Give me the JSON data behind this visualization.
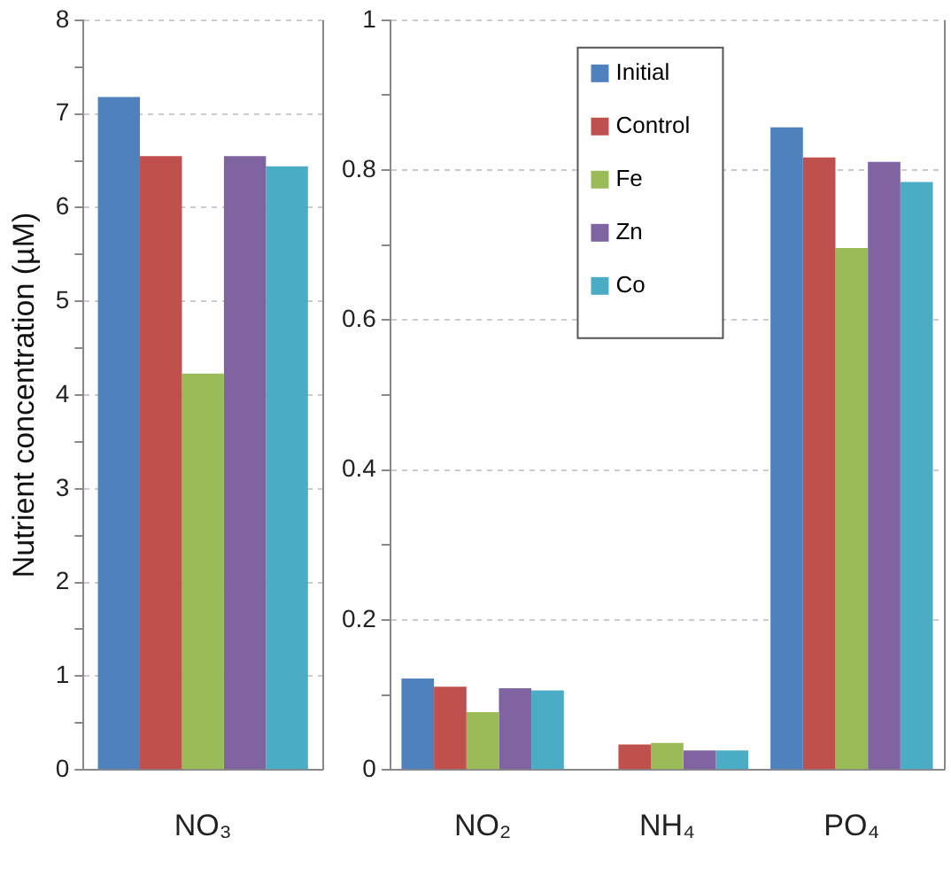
{
  "chart_data": [
    {
      "type": "bar",
      "ylabel": "Nutrient concentration (µM)",
      "categories": [
        "NO₃"
      ],
      "series": [
        {
          "color": "#4f81bd",
          "values": [
            7.18
          ]
        },
        {
          "color": "#c0504d",
          "values": [
            6.55
          ]
        },
        {
          "color": "#9bbb59",
          "values": [
            4.23
          ]
        },
        {
          "color": "#8064a2",
          "values": [
            6.55
          ]
        },
        {
          "color": "#4bacc6",
          "values": [
            6.44
          ]
        }
      ],
      "ylim": [
        0,
        8
      ],
      "yticks": [
        0,
        {
          "value": 0.5,
          "label": null
        },
        1,
        {
          "value": 1.5,
          "label": null
        },
        2,
        {
          "value": 2.5,
          "label": null
        },
        3,
        {
          "value": 3.5,
          "label": null
        },
        4,
        {
          "value": 4.5,
          "label": null
        },
        5,
        {
          "value": 5.5,
          "label": null
        },
        6,
        {
          "value": 6.5,
          "label": null
        },
        7,
        {
          "value": 7.5,
          "label": null
        },
        8
      ],
      "grid": "y"
    },
    {
      "type": "bar",
      "categories": [
        "NO₂",
        "NH₄",
        "PO₄"
      ],
      "series": [
        {
          "name": "Initial",
          "color": "#4f81bd",
          "values": [
            0.122,
            null,
            0.857
          ]
        },
        {
          "name": "Control",
          "color": "#c0504d",
          "values": [
            0.111,
            0.034,
            0.817
          ]
        },
        {
          "name": "Fe",
          "color": "#9bbb59",
          "values": [
            0.077,
            0.036,
            0.696
          ]
        },
        {
          "name": "Zn",
          "color": "#8064a2",
          "values": [
            0.109,
            0.026,
            0.811
          ]
        },
        {
          "name": "Co",
          "color": "#4bacc6",
          "values": [
            0.106,
            0.026,
            0.784
          ]
        }
      ],
      "ylim": [
        0,
        1
      ],
      "yticks": [
        0,
        {
          "value": 0.1,
          "label": null
        },
        0.2,
        {
          "value": 0.3,
          "label": null
        },
        0.4,
        {
          "value": 0.5,
          "label": null
        },
        0.6,
        {
          "value": 0.7,
          "label": null
        },
        0.8,
        {
          "value": 0.9,
          "label": null
        },
        1
      ],
      "grid": "y",
      "legend": "top"
    }
  ]
}
